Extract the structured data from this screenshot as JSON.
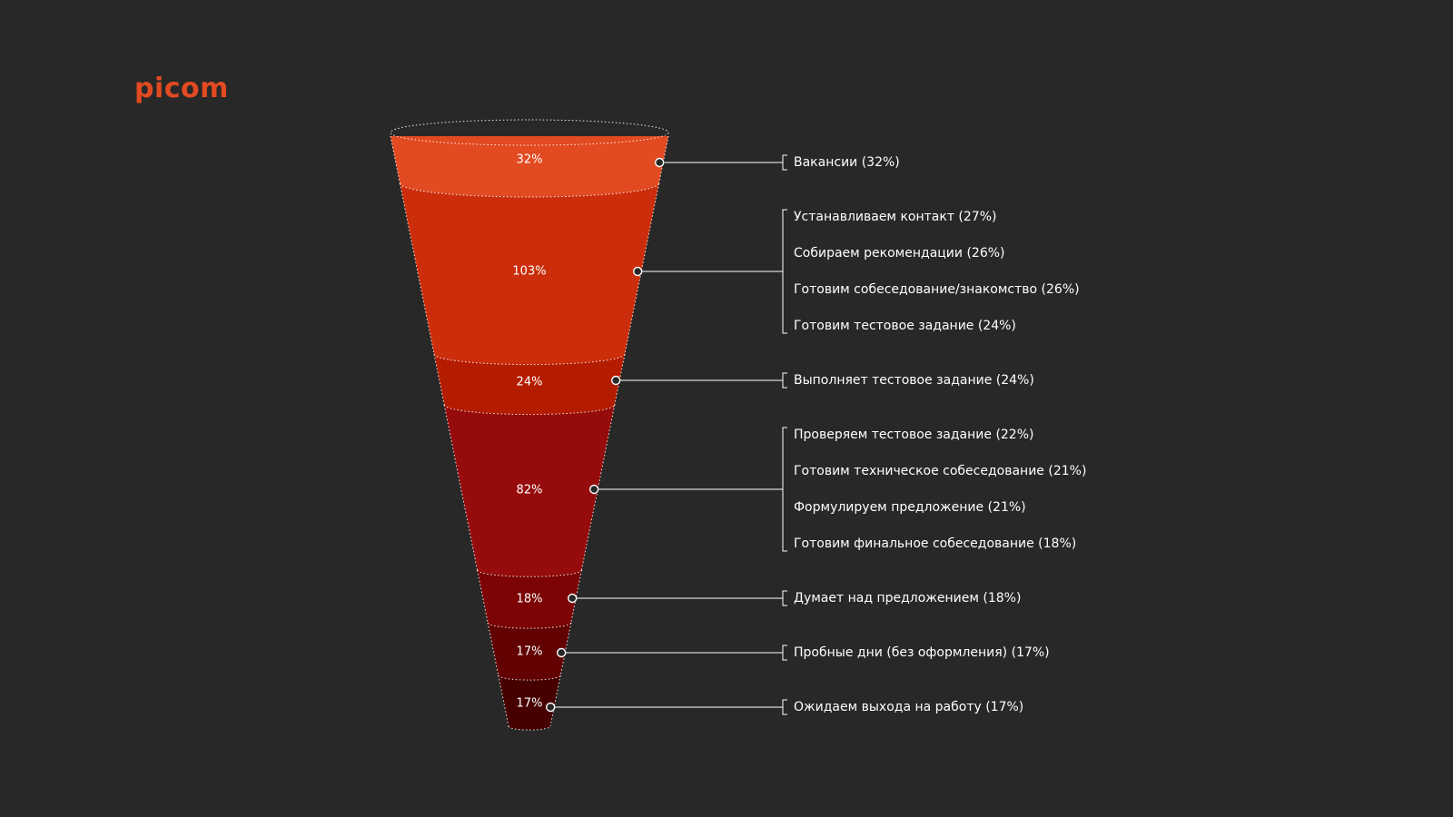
{
  "brand": {
    "logo_text": "picom",
    "accent": "#e24a21"
  },
  "chart_data": {
    "type": "funnel",
    "segments": [
      {
        "value_label": "32%",
        "color": "#e24a21",
        "items": [
          "Вакансии (32%)"
        ]
      },
      {
        "value_label": "103%",
        "color": "#cc2d0b",
        "items": [
          "Устанавливаем контакт (27%)",
          "Собираем рекомендации (26%)",
          "Готовим собеседование/знакомство (26%)",
          "Готовим тестовое задание (24%)"
        ]
      },
      {
        "value_label": "24%",
        "color": "#b41c00",
        "items": [
          "Выполняет тестовое задание (24%)"
        ]
      },
      {
        "value_label": "82%",
        "color": "#960b0b",
        "items": [
          "Проверяем тестовое задание (22%)",
          "Готовим техническое собеседование (21%)",
          "Формулируем предложение (21%)",
          "Готовим финальное собеседование (18%)"
        ]
      },
      {
        "value_label": "18%",
        "color": "#7c0404",
        "items": [
          "Думает над предложением (18%)"
        ]
      },
      {
        "value_label": "17%",
        "color": "#620202",
        "items": [
          "Пробные дни (без оформления) (17%)"
        ]
      },
      {
        "value_label": "17%",
        "color": "#470000",
        "items": [
          "Ожидаем выхода на работу (17%)"
        ]
      }
    ]
  }
}
